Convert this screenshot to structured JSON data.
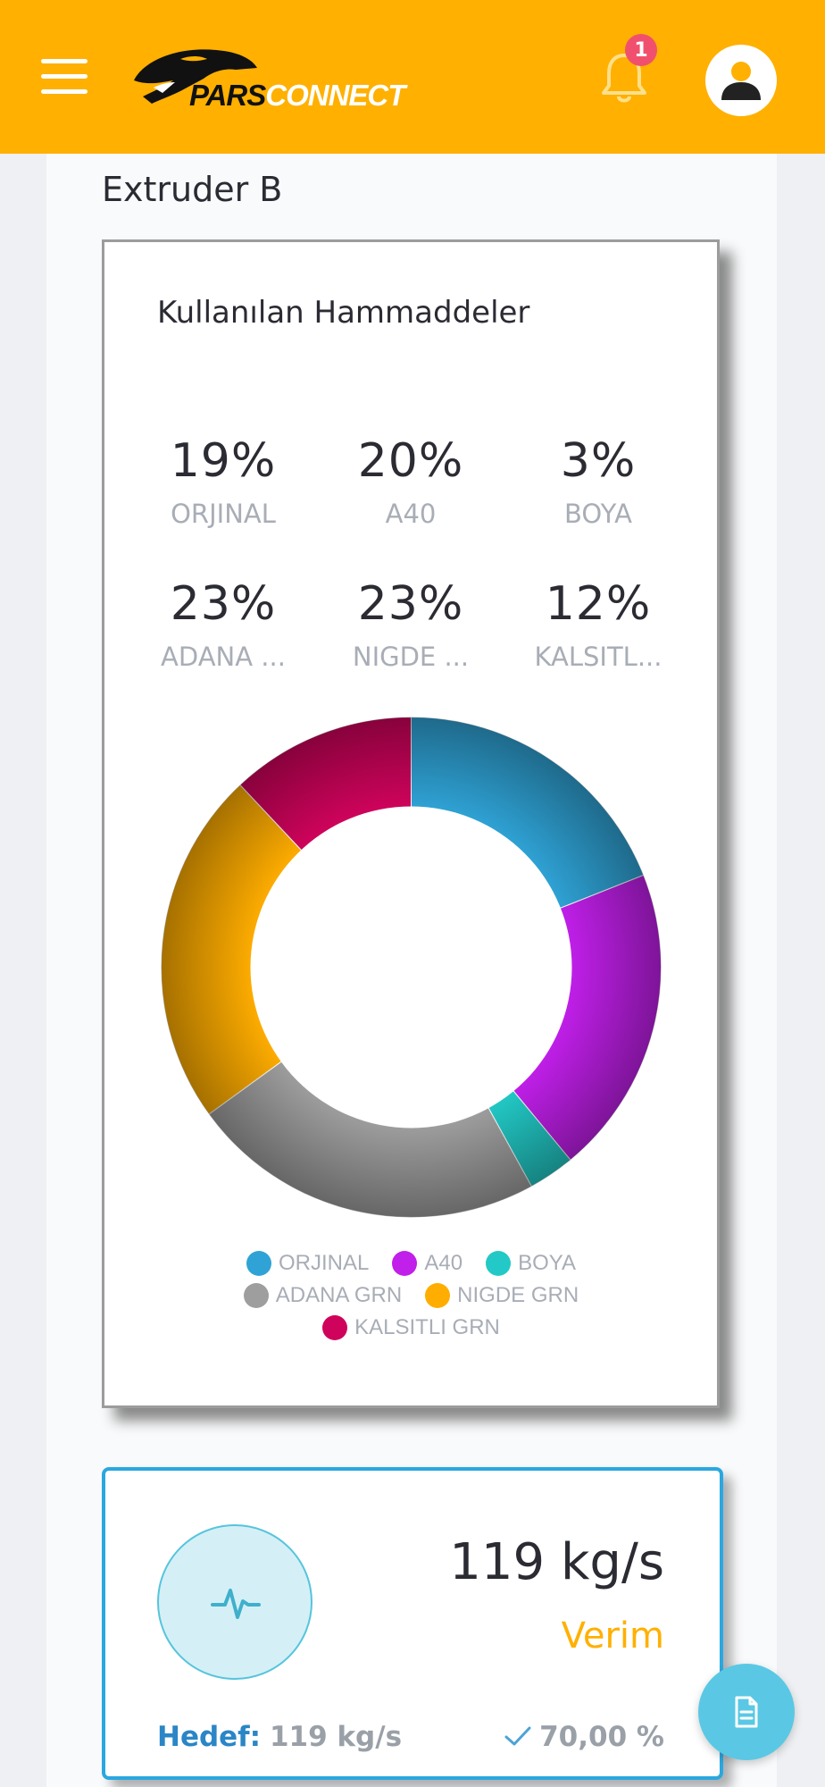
{
  "header": {
    "logo_part1": "PARS",
    "logo_part2": "CONNECT",
    "notification_count": "1",
    "accent_color": "#ffb000"
  },
  "page": {
    "section_title": "Extruder B"
  },
  "materials_card": {
    "title": "Kullanılan Hammaddeler",
    "stats": [
      {
        "pct": "19%",
        "label": "ORJINAL"
      },
      {
        "pct": "20%",
        "label": "A40"
      },
      {
        "pct": "3%",
        "label": "BOYA"
      },
      {
        "pct": "23%",
        "label": "ADANA ..."
      },
      {
        "pct": "23%",
        "label": "NIGDE ..."
      },
      {
        "pct": "12%",
        "label": "KALSITL..."
      }
    ]
  },
  "chart_data": {
    "type": "pie",
    "donut": true,
    "categories": [
      "ORJINAL",
      "A40",
      "BOYA",
      "ADANA GRN",
      "NIGDE GRN",
      "KALSITLI GRN"
    ],
    "values": [
      19,
      20,
      3,
      23,
      23,
      12
    ],
    "colors": [
      "#2fa3d6",
      "#c11fea",
      "#22c9c6",
      "#9e9e9e",
      "#ffad00",
      "#d0035c"
    ],
    "legend_position": "bottom"
  },
  "kpi_card": {
    "value": "119 kg/s",
    "label": "Verim",
    "target_label": "Hedef:",
    "target_value": "119 kg/s",
    "ratio": "70,00 %",
    "icon": "pulse-icon"
  },
  "fab": {
    "icon": "document-icon"
  }
}
